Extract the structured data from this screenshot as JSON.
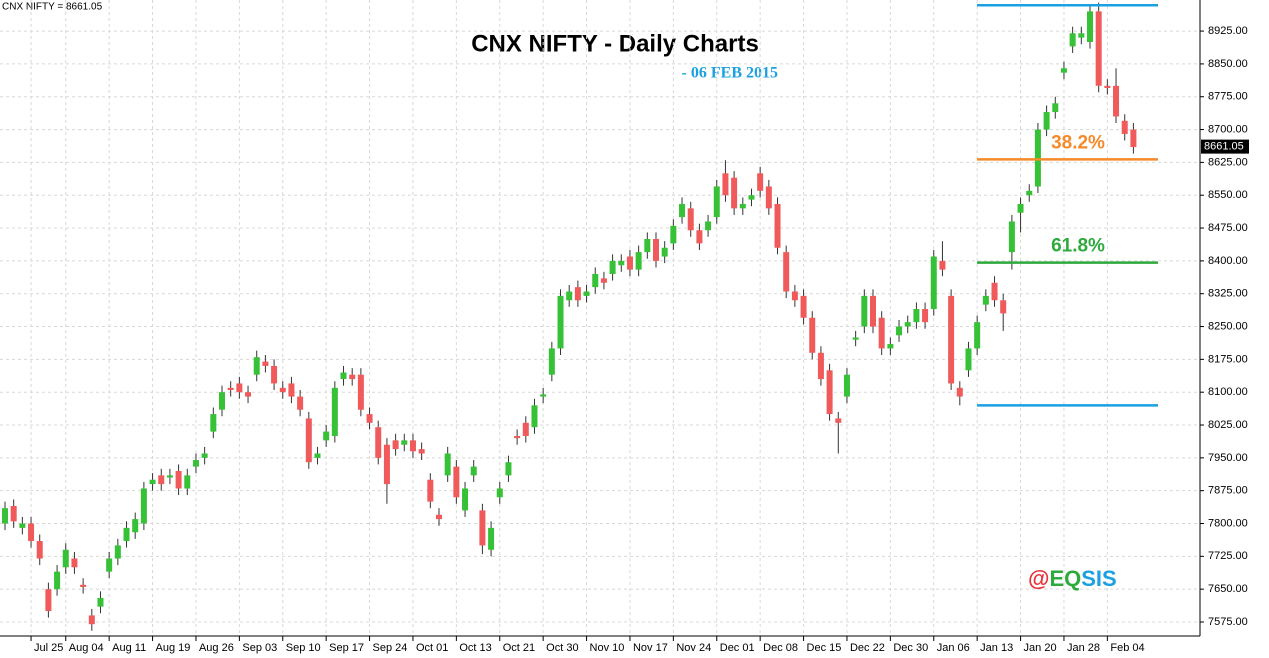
{
  "chart_data": {
    "type": "candlestick",
    "title": "CNX NIFTY - Daily Charts",
    "subtitle": "- 06 FEB 2015",
    "legend_text": "CNX NIFTY = 8661.05",
    "watermark": [
      {
        "text": "@",
        "color": "#e8333a"
      },
      {
        "text": "EQ",
        "color": "#2eaa3c"
      },
      {
        "text": "SIS",
        "color": "#1ba1e2"
      }
    ],
    "up_color": "#36c136",
    "down_color": "#f05a5a",
    "categories": [
      null,
      null,
      null,
      "Jul 25",
      null,
      null,
      null,
      "Aug 04",
      null,
      null,
      null,
      null,
      "Aug 11",
      null,
      null,
      null,
      null,
      "Aug 19",
      null,
      null,
      null,
      null,
      "Aug 26",
      null,
      null,
      null,
      null,
      "Sep 03",
      null,
      null,
      null,
      null,
      "Sep 10",
      null,
      null,
      null,
      null,
      "Sep 17",
      null,
      null,
      null,
      null,
      "Sep 24",
      null,
      null,
      null,
      null,
      "Oct 01",
      null,
      null,
      null,
      null,
      "Oct 13",
      null,
      null,
      null,
      null,
      "Oct 21",
      null,
      null,
      null,
      null,
      "Oct 30",
      null,
      null,
      null,
      null,
      "Nov 10",
      null,
      null,
      null,
      null,
      "Nov 17",
      null,
      null,
      null,
      null,
      "Nov 24",
      null,
      null,
      null,
      null,
      "Dec 01",
      null,
      null,
      null,
      null,
      "Dec 08",
      null,
      null,
      null,
      null,
      "Dec 15",
      null,
      null,
      null,
      null,
      "Dec 22",
      null,
      null,
      null,
      null,
      "Dec 30",
      null,
      null,
      null,
      null,
      "Jan 06",
      null,
      null,
      null,
      null,
      "Jan 13",
      null,
      null,
      null,
      null,
      "Jan 20",
      null,
      null,
      null,
      null,
      "Jan 28",
      null,
      null,
      null,
      null,
      "Feb 04",
      null,
      null,
      null
    ],
    "open": [
      7800,
      7840,
      7790,
      7800,
      7760,
      7650,
      7650,
      7700,
      7720,
      7660,
      7590,
      7610,
      7690,
      7720,
      7760,
      7780,
      7800,
      7890,
      7910,
      7905,
      7920,
      7880,
      7930,
      7950,
      8010,
      8060,
      8110,
      8120,
      8100,
      8140,
      8170,
      8160,
      8110,
      8120,
      8090,
      8040,
      7950,
      7990,
      8000,
      8130,
      8140,
      8140,
      8050,
      8020,
      7980,
      7990,
      7980,
      7990,
      7970,
      7900,
      7820,
      7910,
      7930,
      7830,
      7910,
      7830,
      7740,
      7860,
      7910,
      8000,
      8030,
      8020,
      8090,
      8140,
      8200,
      8310,
      8340,
      8320,
      8340,
      8360,
      8370,
      8390,
      8410,
      8380,
      8420,
      8450,
      8410,
      8440,
      8500,
      8520,
      8470,
      8470,
      8500,
      8600,
      8590,
      8520,
      8540,
      8600,
      8570,
      8530,
      8420,
      8330,
      8320,
      8270,
      8190,
      8150,
      8040,
      8090,
      8220,
      8250,
      8320,
      8270,
      8200,
      8230,
      8250,
      8260,
      8290,
      8290,
      8400,
      8320,
      8110,
      8150,
      8200,
      8300,
      8350,
      8310,
      8420,
      8510,
      8550,
      8570,
      8700,
      8740,
      8830,
      8890,
      8910,
      8900,
      8970,
      8800,
      8800,
      8720,
      8700
    ],
    "high": [
      7850,
      7855,
      7815,
      7815,
      7775,
      7665,
      7705,
      7755,
      7735,
      7675,
      7605,
      7645,
      7735,
      7765,
      7805,
      7825,
      7895,
      7915,
      7925,
      7925,
      7935,
      7925,
      7960,
      7975,
      8065,
      8115,
      8125,
      8135,
      8115,
      8195,
      8185,
      8175,
      8125,
      8135,
      8105,
      8055,
      7975,
      8025,
      8125,
      8160,
      8155,
      8155,
      8065,
      8035,
      7995,
      8005,
      8005,
      8005,
      7985,
      7915,
      7835,
      7975,
      7945,
      7895,
      7945,
      7845,
      7805,
      7895,
      7955,
      8015,
      8045,
      8085,
      8110,
      8215,
      8335,
      8345,
      8355,
      8345,
      8385,
      8375,
      8415,
      8415,
      8425,
      8435,
      8465,
      8465,
      8445,
      8495,
      8545,
      8535,
      8485,
      8505,
      8585,
      8630,
      8605,
      8545,
      8565,
      8615,
      8585,
      8545,
      8435,
      8345,
      8335,
      8285,
      8205,
      8165,
      8055,
      8155,
      8240,
      8335,
      8335,
      8285,
      8225,
      8265,
      8275,
      8305,
      8305,
      8425,
      8445,
      8335,
      8125,
      8215,
      8275,
      8335,
      8365,
      8325,
      8505,
      8545,
      8575,
      8715,
      8755,
      8775,
      8855,
      8935,
      8935,
      8985,
      8990,
      8815,
      8840,
      8735,
      8715
    ],
    "low": [
      7785,
      7790,
      7775,
      7745,
      7705,
      7585,
      7635,
      7685,
      7685,
      7640,
      7555,
      7595,
      7675,
      7705,
      7745,
      7765,
      7785,
      7875,
      7875,
      7890,
      7865,
      7865,
      7915,
      7935,
      7995,
      8045,
      8090,
      8085,
      8075,
      8125,
      8145,
      8105,
      8085,
      8075,
      8045,
      7925,
      7935,
      7975,
      7985,
      8115,
      8115,
      8045,
      8015,
      7935,
      7845,
      7955,
      7965,
      7950,
      7945,
      7835,
      7795,
      7895,
      7845,
      7815,
      7895,
      7730,
      7725,
      7845,
      7895,
      7980,
      7985,
      8005,
      8075,
      8125,
      8185,
      8295,
      8295,
      8305,
      8325,
      8335,
      8355,
      8375,
      8365,
      8365,
      8405,
      8385,
      8395,
      8425,
      8485,
      8455,
      8425,
      8455,
      8485,
      8535,
      8505,
      8505,
      8525,
      8545,
      8505,
      8415,
      8315,
      8295,
      8255,
      8175,
      8115,
      8035,
      7960,
      8075,
      8205,
      8235,
      8235,
      8185,
      8185,
      8215,
      8235,
      8245,
      8245,
      8275,
      8365,
      8105,
      8070,
      8135,
      8185,
      8285,
      8295,
      8240,
      8380,
      8465,
      8535,
      8555,
      8685,
      8725,
      8815,
      8875,
      8895,
      8885,
      8785,
      8780,
      8715,
      8675,
      8645
    ],
    "close": [
      7835,
      7805,
      7800,
      7760,
      7720,
      7600,
      7690,
      7740,
      7700,
      7655,
      7570,
      7630,
      7720,
      7750,
      7790,
      7810,
      7880,
      7900,
      7890,
      7910,
      7880,
      7910,
      7945,
      7960,
      8050,
      8100,
      8105,
      8100,
      8090,
      8180,
      8160,
      8120,
      8100,
      8090,
      8060,
      7940,
      7960,
      8010,
      8110,
      8145,
      8130,
      8060,
      8030,
      7950,
      7890,
      7970,
      7990,
      7965,
      7960,
      7850,
      7810,
      7960,
      7860,
      7880,
      7930,
      7750,
      7790,
      7880,
      7940,
      7995,
      8000,
      8070,
      8095,
      8200,
      8320,
      8330,
      8310,
      8330,
      8370,
      8350,
      8400,
      8400,
      8380,
      8420,
      8450,
      8400,
      8430,
      8480,
      8530,
      8470,
      8440,
      8490,
      8570,
      8550,
      8520,
      8530,
      8550,
      8560,
      8520,
      8430,
      8330,
      8310,
      8270,
      8190,
      8130,
      8050,
      8030,
      8140,
      8225,
      8320,
      8250,
      8200,
      8210,
      8250,
      8260,
      8290,
      8260,
      8410,
      8380,
      8120,
      8090,
      8200,
      8260,
      8320,
      8310,
      8280,
      8490,
      8530,
      8560,
      8700,
      8740,
      8760,
      8840,
      8920,
      8920,
      8970,
      8800,
      8795,
      8730,
      8690,
      8660
    ],
    "ylim": [
      7543,
      8996
    ],
    "yticks": [
      {
        "value": 7575,
        "label": "7575.00"
      },
      {
        "value": 7650,
        "label": "7650.00"
      },
      {
        "value": 7725,
        "label": "7725.00"
      },
      {
        "value": 7800,
        "label": "7800.00"
      },
      {
        "value": 7875,
        "label": "7875.00"
      },
      {
        "value": 7950,
        "label": "7950.00"
      },
      {
        "value": 8025,
        "label": "8025.00"
      },
      {
        "value": 8100,
        "label": "8100.00"
      },
      {
        "value": 8175,
        "label": "8175.00"
      },
      {
        "value": 8250,
        "label": "8250.00"
      },
      {
        "value": 8325,
        "label": "8325.00"
      },
      {
        "value": 8400,
        "label": "8400.00"
      },
      {
        "value": 8475,
        "label": "8475.00"
      },
      {
        "value": 8550,
        "label": "8550.00"
      },
      {
        "value": 8625,
        "label": "8625.00"
      },
      {
        "value": 8700,
        "label": "8700.00"
      },
      {
        "value": 8775,
        "label": "8775.00"
      },
      {
        "value": 8850,
        "label": "8850.00"
      },
      {
        "value": 8925,
        "label": "8925.00"
      }
    ],
    "last_price": {
      "value": 8661.05,
      "label": "8661.05"
    },
    "levels": [
      {
        "value": 8984,
        "color": "#1ba1e2"
      },
      {
        "value": 8632,
        "color": "#f58a2a",
        "label": "38.2%"
      },
      {
        "value": 8396,
        "color": "#2eaa3c",
        "label": "61.8%"
      },
      {
        "value": 8070,
        "color": "#1ba1e2"
      }
    ],
    "grid": true
  }
}
